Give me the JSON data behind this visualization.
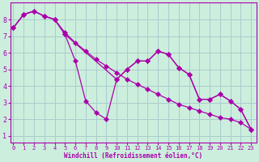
{
  "xlabel": "Windchill (Refroidissement éolien,°C)",
  "background_color": "#cceedd",
  "grid_color": "#aacccc",
  "line_color": "#aa00aa",
  "x_ticks": [
    0,
    1,
    2,
    3,
    4,
    5,
    6,
    7,
    8,
    9,
    10,
    11,
    12,
    13,
    14,
    15,
    16,
    17,
    18,
    19,
    20,
    21,
    22,
    23
  ],
  "y_ticks": [
    1,
    2,
    3,
    4,
    5,
    6,
    7,
    8
  ],
  "ylim": [
    0.6,
    9.0
  ],
  "xlim": [
    -0.3,
    23.5
  ],
  "line1_x": [
    0,
    1,
    2,
    3,
    4,
    5,
    6,
    7,
    8,
    9,
    10,
    11,
    12,
    13,
    14,
    15,
    16,
    17,
    18,
    19,
    20,
    21,
    22,
    23
  ],
  "line1_y": [
    7.5,
    8.3,
    8.5,
    8.2,
    8.0,
    7.1,
    5.5,
    3.1,
    2.4,
    2.0,
    4.4,
    5.0,
    5.5,
    5.5,
    6.1,
    5.9,
    5.1,
    4.7,
    3.2,
    3.2,
    3.5,
    3.1,
    2.6,
    1.4
  ],
  "line2_x": [
    0,
    1,
    2,
    3,
    4,
    5,
    6,
    7,
    8,
    9,
    10,
    11,
    12,
    13,
    14,
    15,
    16,
    17,
    18,
    19,
    20,
    21,
    22,
    23
  ],
  "line2_y": [
    7.5,
    8.3,
    8.5,
    8.2,
    8.0,
    7.2,
    6.6,
    6.1,
    5.6,
    5.2,
    4.8,
    4.4,
    4.1,
    3.8,
    3.5,
    3.2,
    2.9,
    2.7,
    2.5,
    2.3,
    2.1,
    2.0,
    1.8,
    1.4
  ],
  "line3_x": [
    0,
    1,
    2,
    3,
    4,
    5,
    10,
    11,
    12,
    13,
    14,
    15,
    16,
    17,
    18,
    19,
    20,
    21,
    22,
    23
  ],
  "line3_y": [
    7.5,
    8.3,
    8.5,
    8.2,
    8.0,
    7.1,
    4.4,
    5.0,
    5.5,
    5.5,
    6.1,
    5.9,
    5.1,
    4.7,
    3.2,
    3.2,
    3.5,
    3.1,
    2.6,
    1.4
  ]
}
